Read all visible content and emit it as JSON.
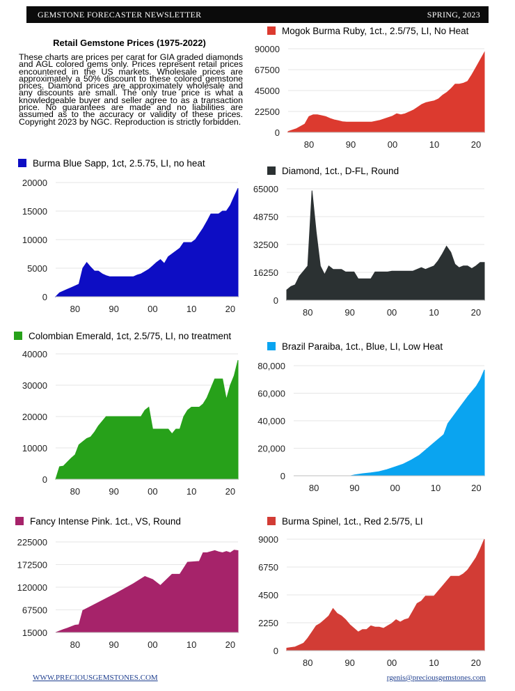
{
  "header": {
    "newsletter": "GEMSTONE FORECASTER NEWSLETTER",
    "issue": "SPRING, 2023"
  },
  "intro": {
    "title": "Retail Gemstone Prices (1975-2022)",
    "text": "These charts are prices per carat for GIA graded diamonds and AGL colored gems only. Prices represent retail prices encountered in the US markets. Wholesale prices are approximately a 50% discount to these colored gemstone prices. Diamond prices are approximately wholesale and any discounts are small. The only true price is what a knowledgeable buyer and seller agree to as a transaction price.  No guarantees are made and no liabilities are assumed as to the accuracy or validity of these prices.  Copyright 2023 by NGC.  Reproduction is strictly forbidden."
  },
  "footer": {
    "left": "WWW.PRECIOUSGEMSTONES.COM",
    "right": "rgenis@preciousgemstones.com"
  },
  "chart_data": [
    {
      "id": "ruby",
      "type": "area",
      "title": "Mogok Burma Ruby, 1ct., 2.5/75, LI, No Heat",
      "color": "#dc3a2f",
      "xlabel": "",
      "ylabel": "",
      "xlim": [
        1975,
        2022
      ],
      "ylim": [
        0,
        90000
      ],
      "yticks": [
        "0",
        "22500",
        "45000",
        "67500",
        "90000"
      ],
      "xticks": [
        "80",
        "90",
        "00",
        "10",
        "20"
      ],
      "x": [
        1975,
        1977,
        1979,
        1980,
        1981,
        1982,
        1983,
        1984,
        1985,
        1986,
        1987,
        1988,
        1989,
        1990,
        1991,
        1992,
        1993,
        1994,
        1995,
        1996,
        1997,
        1998,
        1999,
        2000,
        2001,
        2002,
        2003,
        2004,
        2005,
        2006,
        2007,
        2008,
        2009,
        2010,
        2011,
        2012,
        2013,
        2014,
        2015,
        2016,
        2017,
        2018,
        2019,
        2020,
        2021,
        2022
      ],
      "values": [
        1000,
        4000,
        9000,
        17000,
        19000,
        19000,
        18000,
        17000,
        15000,
        13500,
        12500,
        11500,
        11000,
        11000,
        11000,
        11000,
        11000,
        11000,
        11000,
        12000,
        13000,
        14500,
        16000,
        17500,
        20000,
        19000,
        20000,
        22000,
        24000,
        27000,
        30000,
        32000,
        33000,
        34000,
        36000,
        40000,
        43000,
        47000,
        52000,
        52000,
        53000,
        55000,
        62000,
        70000,
        78000,
        86000
      ]
    },
    {
      "id": "sapphire",
      "type": "area",
      "title": "Burma Blue Sapp, 1ct, 2.5.75, LI, no heat",
      "color": "#0d0dc4",
      "xlabel": "",
      "ylabel": "",
      "xlim": [
        1975,
        2022
      ],
      "ylim": [
        0,
        20000
      ],
      "yticks": [
        "0",
        "5000",
        "10000",
        "15000",
        "20000"
      ],
      "xticks": [
        "80",
        "90",
        "00",
        "10",
        "20"
      ],
      "x": [
        1975,
        1976,
        1977,
        1978,
        1979,
        1980,
        1981,
        1982,
        1983,
        1984,
        1985,
        1986,
        1987,
        1988,
        1989,
        1990,
        1991,
        1992,
        1993,
        1994,
        1995,
        1996,
        1997,
        1998,
        1999,
        2000,
        2001,
        2002,
        2003,
        2004,
        2005,
        2006,
        2007,
        2008,
        2009,
        2010,
        2011,
        2012,
        2013,
        2014,
        2015,
        2016,
        2017,
        2018,
        2019,
        2020,
        2021,
        2022
      ],
      "values": [
        0,
        700,
        1000,
        1300,
        1600,
        1900,
        2200,
        5000,
        6000,
        5200,
        4500,
        4500,
        4000,
        3700,
        3500,
        3500,
        3500,
        3500,
        3500,
        3500,
        3500,
        3800,
        4000,
        4400,
        4800,
        5400,
        6000,
        6500,
        5800,
        7000,
        7500,
        8000,
        8500,
        9500,
        9500,
        9500,
        10000,
        11000,
        12000,
        13200,
        14500,
        14500,
        14500,
        15000,
        15000,
        16000,
        17500,
        19000
      ]
    },
    {
      "id": "diamond",
      "type": "area",
      "title": "Diamond, 1ct., D-FL, Round",
      "color": "#2b3132",
      "xlabel": "",
      "ylabel": "",
      "xlim": [
        1975,
        2022
      ],
      "ylim": [
        0,
        65000
      ],
      "yticks": [
        "0",
        "16250",
        "32500",
        "48750",
        "65000"
      ],
      "xticks": [
        "80",
        "90",
        "00",
        "10",
        "20"
      ],
      "x": [
        1975,
        1976,
        1977,
        1978,
        1979,
        1980,
        1981,
        1982,
        1983,
        1984,
        1985,
        1986,
        1987,
        1988,
        1989,
        1990,
        1991,
        1992,
        1993,
        1994,
        1995,
        1996,
        1997,
        1998,
        1999,
        2000,
        2001,
        2002,
        2003,
        2004,
        2005,
        2006,
        2007,
        2008,
        2009,
        2010,
        2011,
        2012,
        2013,
        2014,
        2015,
        2016,
        2017,
        2018,
        2019,
        2020,
        2021,
        2022
      ],
      "values": [
        6000,
        8000,
        9000,
        14000,
        17000,
        20000,
        64000,
        40000,
        20000,
        15000,
        20000,
        18000,
        18000,
        18000,
        16500,
        16500,
        16500,
        12500,
        12500,
        12500,
        12500,
        16500,
        16500,
        16500,
        16500,
        17000,
        17000,
        17000,
        17000,
        17000,
        17000,
        18000,
        19000,
        18000,
        19000,
        20000,
        23000,
        27000,
        31500,
        28000,
        21000,
        19000,
        20000,
        20000,
        18500,
        20000,
        22000,
        22000
      ]
    },
    {
      "id": "emerald",
      "type": "area",
      "title": "Colombian Emerald, 1ct, 2.5/75, LI, no treatment",
      "color": "#27a11a",
      "xlabel": "",
      "ylabel": "",
      "xlim": [
        1975,
        2022
      ],
      "ylim": [
        0,
        40000
      ],
      "yticks": [
        "0",
        "10000",
        "20000",
        "30000",
        "40000"
      ],
      "xticks": [
        "80",
        "90",
        "00",
        "10",
        "20"
      ],
      "x": [
        1975,
        1976,
        1977,
        1978,
        1979,
        1980,
        1981,
        1982,
        1983,
        1984,
        1985,
        1986,
        1987,
        1988,
        1989,
        1990,
        1991,
        1992,
        1993,
        1994,
        1995,
        1996,
        1997,
        1998,
        1999,
        2000,
        2001,
        2002,
        2003,
        2004,
        2005,
        2006,
        2007,
        2008,
        2009,
        2010,
        2011,
        2012,
        2013,
        2014,
        2015,
        2016,
        2017,
        2018,
        2019,
        2020,
        2021,
        2022
      ],
      "values": [
        0,
        4000,
        4200,
        5500,
        6700,
        7800,
        11000,
        12000,
        13000,
        13500,
        15000,
        17000,
        18500,
        20000,
        20000,
        20000,
        20000,
        20000,
        20000,
        20000,
        20000,
        20000,
        20000,
        22000,
        23000,
        16000,
        16000,
        16000,
        16000,
        16000,
        14500,
        16000,
        16000,
        20000,
        22000,
        23000,
        23000,
        23000,
        24000,
        26000,
        29000,
        32000,
        32000,
        32000,
        25500,
        30000,
        33000,
        38000
      ]
    },
    {
      "id": "paraiba",
      "type": "area",
      "title": "Brazil Paraiba, 1ct., Blue, LI, Low Heat",
      "color": "#0aa4f0",
      "xlabel": "",
      "ylabel": "",
      "xlim": [
        1975,
        2022
      ],
      "ylim": [
        0,
        80000
      ],
      "yticks": [
        "0",
        "20,000",
        "40,000",
        "60,000",
        "80,000"
      ],
      "xticks": [
        "80",
        "90",
        "00",
        "10",
        "20"
      ],
      "x": [
        1975,
        1989,
        1990,
        1992,
        1994,
        1996,
        1998,
        2000,
        2002,
        2004,
        2006,
        2008,
        2010,
        2012,
        2013,
        2014,
        2016,
        2018,
        2020,
        2021,
        2022
      ],
      "values": [
        0,
        0,
        600,
        1500,
        2200,
        3000,
        4500,
        6500,
        8500,
        11500,
        15000,
        20000,
        25000,
        30000,
        38000,
        42000,
        50000,
        58000,
        65000,
        70000,
        77000
      ]
    },
    {
      "id": "pink",
      "type": "area",
      "title": "Fancy Intense Pink. 1ct., VS, Round",
      "color": "#a6236a",
      "xlabel": "",
      "ylabel": "",
      "xlim": [
        1975,
        2022
      ],
      "ylim": [
        15000,
        225000
      ],
      "yticks": [
        "15000",
        "67500",
        "120000",
        "172500",
        "225000"
      ],
      "xticks": [
        "80",
        "90",
        "00",
        "10",
        "20"
      ],
      "x": [
        1975,
        1977,
        1978,
        1980,
        1981,
        1982,
        1985,
        1990,
        1995,
        1998,
        2000,
        2002,
        2005,
        2007,
        2009,
        2012,
        2013,
        2014,
        2016,
        2017,
        2018,
        2019,
        2020,
        2021,
        2022
      ],
      "values": [
        15000,
        22000,
        25000,
        32000,
        33000,
        66000,
        80000,
        103000,
        128000,
        145000,
        138000,
        124000,
        150000,
        150000,
        178000,
        180000,
        200000,
        200000,
        205000,
        202000,
        200000,
        203000,
        200000,
        206000,
        205000
      ]
    },
    {
      "id": "spinel",
      "type": "area",
      "title": "Burma Spinel, 1ct., Red 2.5/75, LI",
      "color": "#d23c35",
      "xlabel": "",
      "ylabel": "",
      "xlim": [
        1975,
        2022
      ],
      "ylim": [
        0,
        9000
      ],
      "yticks": [
        "0",
        "2250",
        "4500",
        "6750",
        "9000"
      ],
      "xticks": [
        "80",
        "90",
        "00",
        "10",
        "20"
      ],
      "x": [
        1975,
        1977,
        1979,
        1980,
        1981,
        1982,
        1983,
        1984,
        1985,
        1986,
        1987,
        1988,
        1989,
        1990,
        1991,
        1992,
        1993,
        1994,
        1995,
        1996,
        1997,
        1998,
        1999,
        2000,
        2001,
        2002,
        2003,
        2004,
        2005,
        2006,
        2007,
        2008,
        2009,
        2010,
        2011,
        2012,
        2013,
        2014,
        2015,
        2016,
        2017,
        2018,
        2019,
        2020,
        2021,
        2022
      ],
      "values": [
        200,
        300,
        600,
        1000,
        1500,
        2000,
        2200,
        2500,
        2800,
        3400,
        3000,
        2800,
        2500,
        2100,
        1800,
        1500,
        1700,
        1700,
        2000,
        1900,
        1900,
        1800,
        2000,
        2200,
        2500,
        2300,
        2500,
        2600,
        3200,
        3800,
        4000,
        4400,
        4400,
        4400,
        4800,
        5200,
        5600,
        6000,
        6000,
        6000,
        6200,
        6500,
        7000,
        7500,
        8200,
        9000
      ]
    }
  ]
}
